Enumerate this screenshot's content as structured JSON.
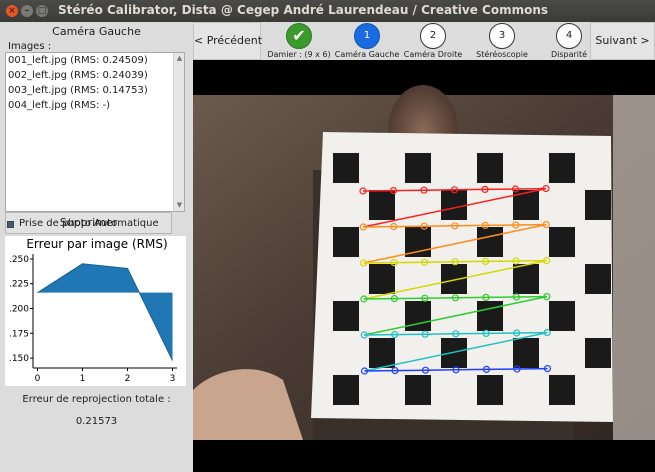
{
  "window": {
    "title": "Stéréo Calibrator, Dista @ Cegep André Laurendeau / Creative Commons",
    "close_glyph": "×",
    "min_glyph": "–",
    "max_glyph": "□"
  },
  "left_panel": {
    "title": "Caméra Gauche",
    "images_label": "Images :",
    "images": [
      "001_left.jpg (RMS: 0.24509)",
      "002_left.jpg (RMS: 0.24039)",
      "003_left.jpg (RMS: 0.14753)",
      "004_left.jpg (RMS: -)"
    ],
    "scroll_up_glyph": "▲",
    "scroll_down_glyph": "▼",
    "delete_button": "Supprimer",
    "auto_photo_label": "Prise de photo Automatique",
    "auto_photo_checked": true,
    "reprojection_label": "Erreur de reprojection totale :",
    "reprojection_value": "0.21573"
  },
  "nav": {
    "prev_label": "< Précédent",
    "next_label": "Suivant >",
    "steps": [
      {
        "number": "✔",
        "label": "Damier : (9 x 6)",
        "state": "done"
      },
      {
        "number": "1",
        "label": "Caméra Gauche",
        "state": "active"
      },
      {
        "number": "2",
        "label": "Caméra Droite",
        "state": "pending"
      },
      {
        "number": "3",
        "label": "Stéréoscopie",
        "state": "pending"
      },
      {
        "number": "4",
        "label": "Disparité",
        "state": "pending"
      }
    ]
  },
  "colors": {
    "accent_blue": "#1b6be0",
    "done_green": "#3a9a2c",
    "chart_fill": "#1f77b4",
    "close_button": "#e95420"
  },
  "chart_data": {
    "type": "area",
    "title": "Erreur par image (RMS)",
    "x": [
      0,
      1,
      2,
      3
    ],
    "x_ticks": [
      "0",
      "1",
      "2",
      "3"
    ],
    "y_ticks": [
      ".250",
      ".225",
      ".200",
      ".175",
      ".150"
    ],
    "series": [
      {
        "values": [
          0.216,
          0.2451,
          0.2404,
          0.1475
        ]
      }
    ],
    "baseline_series": [
      {
        "values": [
          0.216,
          0.216,
          0.216,
          0.216
        ]
      }
    ],
    "ylim": [
      0.14,
      0.255
    ],
    "xlim": [
      -0.1,
      3.1
    ],
    "xlabel": "",
    "ylabel": ""
  },
  "camera": {
    "checkerboard_cols": 7,
    "checkerboard_rows": 6,
    "detected_corner_rows": 6,
    "detected_corner_cols": 7,
    "corner_row_colors": [
      "#ff1f1f",
      "#ff8c1a",
      "#d6d600",
      "#2ecc2e",
      "#1fc1c1",
      "#1f3fff"
    ]
  }
}
